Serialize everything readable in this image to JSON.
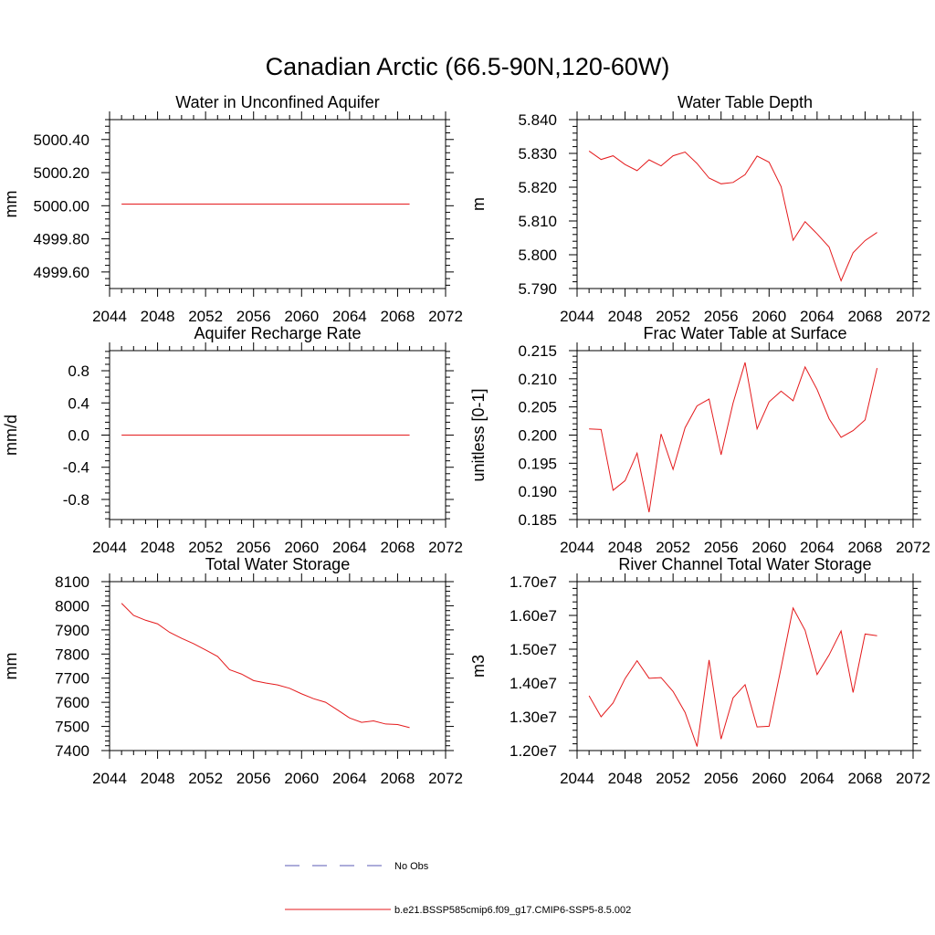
{
  "figure": {
    "title": "Canadian Arctic (66.5-90N,120-60W)"
  },
  "legend": {
    "items": [
      {
        "label": "No Obs",
        "color": "#5a5ab4",
        "dash": true
      },
      {
        "label": "b.e21.BSSP585cmip6.f09_g17.CMIP6-SSP5-8.5.002",
        "color": "#e41a1c",
        "dash": false
      }
    ]
  },
  "chart_data": [
    {
      "type": "line",
      "title": "Water in Unconfined Aquifer",
      "ylabel": "mm",
      "xlim": [
        2044,
        2072
      ],
      "ylim": [
        4999.5,
        5000.52
      ],
      "xticks": [
        2044,
        2048,
        2052,
        2056,
        2060,
        2064,
        2068,
        2072
      ],
      "xtick_labels": [
        "2044",
        "2048",
        "2052",
        "2056",
        "2060",
        "2064",
        "2068",
        "2072"
      ],
      "yticks": [
        4999.6,
        4999.8,
        5000.0,
        5000.2,
        5000.4
      ],
      "ytick_labels": [
        "4999.60",
        "4999.80",
        "5000.00",
        "5000.20",
        "5000.40"
      ],
      "series": [
        {
          "color": "#e41a1c",
          "x": [
            2045,
            2046,
            2047,
            2048,
            2049,
            2050,
            2051,
            2052,
            2053,
            2054,
            2055,
            2056,
            2057,
            2058,
            2059,
            2060,
            2061,
            2062,
            2063,
            2064,
            2065,
            2066,
            2067,
            2068,
            2069
          ],
          "y": [
            5000.01,
            5000.01,
            5000.01,
            5000.01,
            5000.01,
            5000.01,
            5000.01,
            5000.01,
            5000.01,
            5000.01,
            5000.01,
            5000.01,
            5000.01,
            5000.01,
            5000.01,
            5000.01,
            5000.01,
            5000.01,
            5000.01,
            5000.01,
            5000.01,
            5000.01,
            5000.01,
            5000.01,
            5000.01
          ]
        }
      ]
    },
    {
      "type": "line",
      "title": "Water Table Depth",
      "ylabel": "m",
      "xlim": [
        2044,
        2072
      ],
      "ylim": [
        5.79,
        5.84
      ],
      "xticks": [
        2044,
        2048,
        2052,
        2056,
        2060,
        2064,
        2068,
        2072
      ],
      "xtick_labels": [
        "2044",
        "2048",
        "2052",
        "2056",
        "2060",
        "2064",
        "2068",
        "2072"
      ],
      "yticks": [
        5.79,
        5.8,
        5.81,
        5.82,
        5.83,
        5.84
      ],
      "ytick_labels": [
        "5.790",
        "5.800",
        "5.810",
        "5.820",
        "5.830",
        "5.840"
      ],
      "series": [
        {
          "color": "#e41a1c",
          "x": [
            2045,
            2046,
            2047,
            2048,
            2049,
            2050,
            2051,
            2052,
            2053,
            2054,
            2055,
            2056,
            2057,
            2058,
            2059,
            2060,
            2061,
            2062,
            2063,
            2064,
            2065,
            2066,
            2067,
            2068,
            2069
          ],
          "y": [
            5.8307,
            5.8282,
            5.8293,
            5.8267,
            5.8249,
            5.8281,
            5.8263,
            5.8293,
            5.8304,
            5.827,
            5.8227,
            5.821,
            5.8214,
            5.8237,
            5.8292,
            5.8274,
            5.8202,
            5.8043,
            5.8098,
            5.8062,
            5.8023,
            5.7923,
            5.8006,
            5.8042,
            5.8066
          ]
        }
      ]
    },
    {
      "type": "line",
      "title": "Aquifer Recharge Rate",
      "ylabel": "mm/d",
      "xlim": [
        2044,
        2072
      ],
      "ylim": [
        -1.05,
        1.05
      ],
      "xticks": [
        2044,
        2048,
        2052,
        2056,
        2060,
        2064,
        2068,
        2072
      ],
      "xtick_labels": [
        "2044",
        "2048",
        "2052",
        "2056",
        "2060",
        "2064",
        "2068",
        "2072"
      ],
      "yticks": [
        -0.8,
        -0.4,
        0.0,
        0.4,
        0.8
      ],
      "ytick_labels": [
        "-0.8",
        "-0.4",
        "0.0",
        "0.4",
        "0.8"
      ],
      "series": [
        {
          "color": "#e41a1c",
          "x": [
            2045,
            2046,
            2047,
            2048,
            2049,
            2050,
            2051,
            2052,
            2053,
            2054,
            2055,
            2056,
            2057,
            2058,
            2059,
            2060,
            2061,
            2062,
            2063,
            2064,
            2065,
            2066,
            2067,
            2068,
            2069
          ],
          "y": [
            0,
            0,
            0,
            0,
            0,
            0,
            0,
            0,
            0,
            0,
            0,
            0,
            0,
            0,
            0,
            0,
            0,
            0,
            0,
            0,
            0,
            0,
            0,
            0,
            0
          ]
        }
      ]
    },
    {
      "type": "line",
      "title": "Frac Water Table at Surface",
      "ylabel": "unitless [0-1]",
      "xlim": [
        2044,
        2072
      ],
      "ylim": [
        0.185,
        0.215
      ],
      "xticks": [
        2044,
        2048,
        2052,
        2056,
        2060,
        2064,
        2068,
        2072
      ],
      "xtick_labels": [
        "2044",
        "2048",
        "2052",
        "2056",
        "2060",
        "2064",
        "2068",
        "2072"
      ],
      "yticks": [
        0.185,
        0.19,
        0.195,
        0.2,
        0.205,
        0.21,
        0.215
      ],
      "ytick_labels": [
        "0.185",
        "0.190",
        "0.195",
        "0.200",
        "0.205",
        "0.210",
        "0.215"
      ],
      "series": [
        {
          "color": "#e41a1c",
          "x": [
            2045,
            2046,
            2047,
            2048,
            2049,
            2050,
            2051,
            2052,
            2053,
            2054,
            2055,
            2056,
            2057,
            2058,
            2059,
            2060,
            2061,
            2062,
            2063,
            2064,
            2065,
            2066,
            2067,
            2068,
            2069
          ],
          "y": [
            0.2011,
            0.201,
            0.1902,
            0.1919,
            0.1968,
            0.1863,
            0.2002,
            0.1939,
            0.2013,
            0.2052,
            0.2064,
            0.1965,
            0.2057,
            0.2129,
            0.2011,
            0.2059,
            0.2078,
            0.2061,
            0.2121,
            0.2081,
            0.2029,
            0.1996,
            0.2008,
            0.2027,
            0.2119
          ]
        }
      ]
    },
    {
      "type": "line",
      "title": "Total Water Storage",
      "ylabel": "mm",
      "xlim": [
        2044,
        2072
      ],
      "ylim": [
        7400,
        8100
      ],
      "xticks": [
        2044,
        2048,
        2052,
        2056,
        2060,
        2064,
        2068,
        2072
      ],
      "xtick_labels": [
        "2044",
        "2048",
        "2052",
        "2056",
        "2060",
        "2064",
        "2068",
        "2072"
      ],
      "yticks": [
        7400,
        7500,
        7600,
        7700,
        7800,
        7900,
        8000,
        8100
      ],
      "ytick_labels": [
        "7400",
        "7500",
        "7600",
        "7700",
        "7800",
        "7900",
        "8000",
        "8100"
      ],
      "series": [
        {
          "color": "#e41a1c",
          "x": [
            2045,
            2046,
            2047,
            2048,
            2049,
            2050,
            2051,
            2052,
            2053,
            2054,
            2055,
            2056,
            2057,
            2058,
            2059,
            2060,
            2061,
            2062,
            2063,
            2064,
            2065,
            2066,
            2067,
            2068,
            2069
          ],
          "y": [
            8010,
            7960,
            7940,
            7925,
            7890,
            7865,
            7843,
            7817,
            7790,
            7735,
            7717,
            7690,
            7680,
            7672,
            7658,
            7635,
            7615,
            7600,
            7568,
            7535,
            7517,
            7523,
            7510,
            7508,
            7495
          ]
        }
      ]
    },
    {
      "type": "line",
      "title": "River Channel Total Water Storage",
      "ylabel": "m3",
      "xlim": [
        2044,
        2072
      ],
      "ylim": [
        12000000,
        17000000
      ],
      "xticks": [
        2044,
        2048,
        2052,
        2056,
        2060,
        2064,
        2068,
        2072
      ],
      "xtick_labels": [
        "2044",
        "2048",
        "2052",
        "2056",
        "2060",
        "2064",
        "2068",
        "2072"
      ],
      "yticks": [
        12000000,
        13000000,
        14000000,
        15000000,
        16000000,
        17000000
      ],
      "ytick_labels": [
        "1.20e7",
        "1.30e7",
        "1.40e7",
        "1.50e7",
        "1.60e7",
        "1.70e7"
      ],
      "series": [
        {
          "color": "#e41a1c",
          "x": [
            2045,
            2046,
            2047,
            2048,
            2049,
            2050,
            2051,
            2052,
            2053,
            2054,
            2055,
            2056,
            2057,
            2058,
            2059,
            2060,
            2061,
            2062,
            2063,
            2064,
            2065,
            2066,
            2067,
            2068,
            2069
          ],
          "y": [
            13620000,
            13000000,
            13410000,
            14130000,
            14660000,
            14140000,
            14160000,
            13750000,
            13130000,
            12120000,
            14680000,
            12340000,
            13560000,
            13950000,
            12700000,
            12720000,
            14450000,
            16220000,
            15560000,
            14250000,
            14830000,
            15540000,
            13720000,
            15450000,
            15400000
          ]
        }
      ]
    }
  ]
}
